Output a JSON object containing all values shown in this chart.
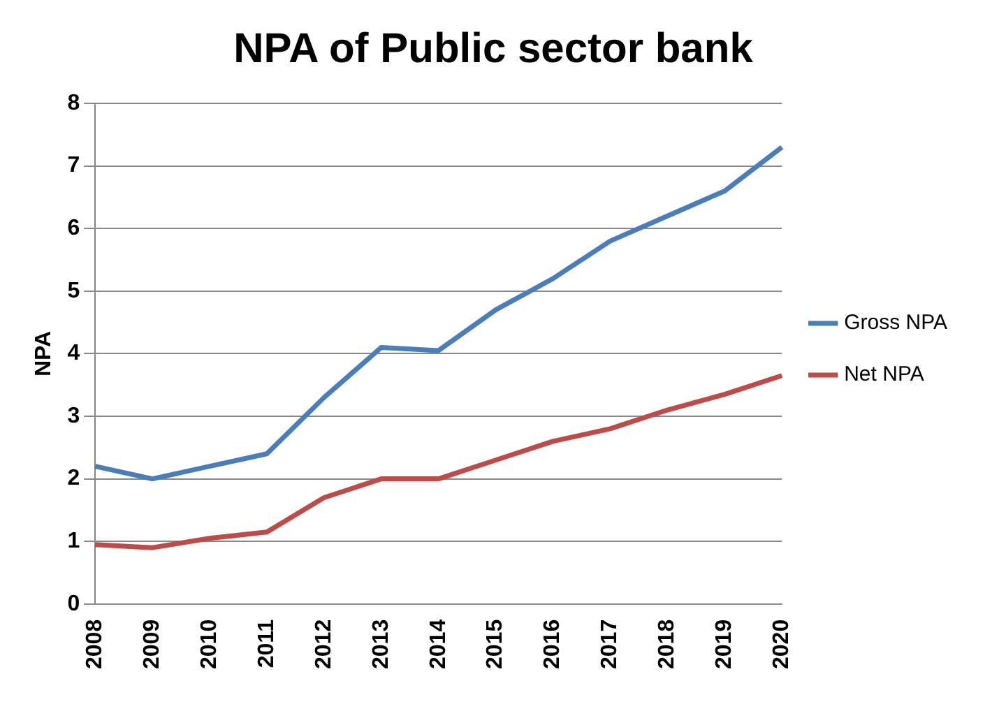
{
  "chart_data": {
    "type": "line",
    "title": "NPA of Public sector bank",
    "ylabel": "NPA",
    "categories": [
      "2008",
      "2009",
      "2010",
      "2011",
      "2012",
      "2013",
      "2014",
      "2015",
      "2016",
      "2017",
      "2018",
      "2019",
      "2020"
    ],
    "series": [
      {
        "name": "Gross NPA",
        "color": "#4a7ebb",
        "values": [
          2.2,
          2.0,
          2.2,
          2.4,
          3.3,
          4.1,
          4.05,
          4.7,
          5.2,
          5.8,
          6.2,
          6.6,
          7.3
        ]
      },
      {
        "name": "Net NPA",
        "color": "#be4b48",
        "values": [
          0.95,
          0.9,
          1.05,
          1.15,
          1.7,
          2.0,
          2.0,
          2.3,
          2.6,
          2.8,
          3.1,
          3.35,
          3.65
        ]
      }
    ],
    "ylim": [
      0,
      8
    ],
    "yticks": [
      0,
      1,
      2,
      3,
      4,
      5,
      6,
      7,
      8
    ],
    "grid": "y",
    "legend": "right",
    "marker": "none",
    "line_style": "solid"
  }
}
